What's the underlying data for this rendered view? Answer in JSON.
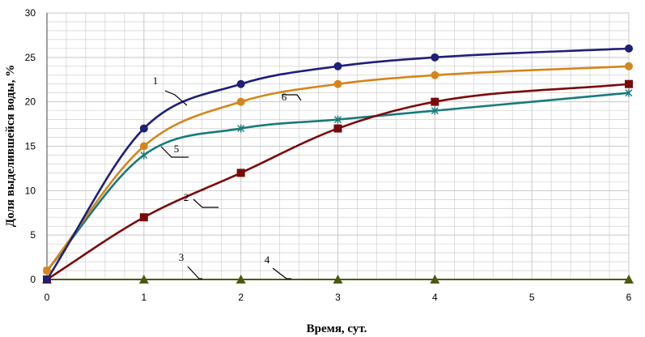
{
  "chart_data": {
    "type": "line",
    "title": "",
    "xlabel": "Время, сут.",
    "ylabel": "Доля выделившейся воды, %",
    "x": [
      0,
      1,
      2,
      3,
      4,
      6
    ],
    "x_ticks": [
      "0",
      "1",
      "2",
      "3",
      "4",
      "5",
      "6"
    ],
    "y_ticks": [
      "0",
      "5",
      "10",
      "15",
      "20",
      "25",
      "30"
    ],
    "xlim": [
      0,
      6
    ],
    "ylim": [
      0,
      30
    ],
    "grid": true,
    "legend": "callout labels on curves",
    "series": [
      {
        "name": "1",
        "color": "#1f1f7a",
        "marker": "circle",
        "values": [
          0,
          17,
          22,
          24,
          25,
          26
        ]
      },
      {
        "name": "2",
        "color": "#7a0a0a",
        "marker": "square",
        "values": [
          0,
          7,
          12,
          17,
          20,
          22
        ]
      },
      {
        "name": "3",
        "color": "#8a8a00",
        "marker": "none",
        "values": [
          0,
          0,
          0,
          0,
          0,
          0
        ]
      },
      {
        "name": "4",
        "color": "#4a5a10",
        "marker": "triangle",
        "values": [
          0,
          0,
          0,
          0,
          0,
          0
        ]
      },
      {
        "name": "5",
        "color": "#1a7a7a",
        "marker": "star",
        "values": [
          1,
          14,
          17,
          18,
          19,
          21
        ]
      },
      {
        "name": "6",
        "color": "#d4861c",
        "marker": "circle",
        "values": [
          1,
          15,
          20,
          22,
          23,
          24
        ]
      }
    ]
  }
}
